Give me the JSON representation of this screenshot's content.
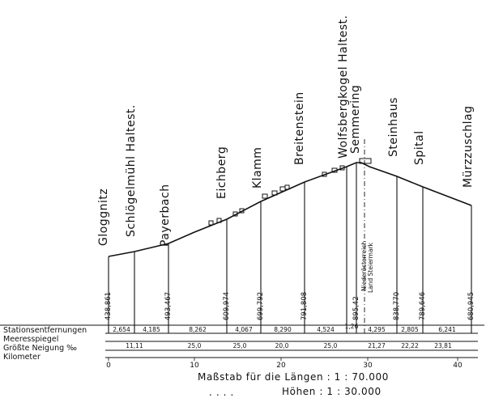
{
  "stations": [
    {
      "name": "Gloggnitz",
      "elevation": "438,861"
    },
    {
      "name": "Schlögelmühl Haltest.",
      "elevation": ""
    },
    {
      "name": "Payerbach",
      "elevation": "493,467"
    },
    {
      "name": "Eichberg",
      "elevation": "609,974"
    },
    {
      "name": "Klamm",
      "elevation": "699,792"
    },
    {
      "name": "Breitenstein",
      "elevation": "791,808"
    },
    {
      "name": "Wolfsbergkogel Haltest.",
      "elevation": ""
    },
    {
      "name": "Semmering",
      "elevation": "895,42"
    },
    {
      "name": "Steinhaus",
      "elevation": "838,770"
    },
    {
      "name": "Spital",
      "elevation": "789,646"
    },
    {
      "name": "Mürzzuschlag",
      "elevation": "680,945"
    }
  ],
  "border_label": {
    "line1": "Niederösterreich",
    "line2": "Land Steiermark"
  },
  "legend": {
    "distances": "Stationsentfernungen",
    "sea_level": "Meeresspiegel",
    "gradient": "Größte Neigung ‰",
    "kilometer": "Kilometer"
  },
  "distances": [
    "2,654",
    "4,185",
    "8,262",
    "4,067",
    "8,290",
    "4,524",
    "1,26",
    "4,295",
    "2,805",
    "6,241"
  ],
  "gradients": [
    "11,11",
    "25,0",
    "25,0",
    "20,0",
    "25,0",
    "21,27",
    "22,22",
    "23,81"
  ],
  "km_ticks": [
    "0",
    "10",
    "20",
    "30",
    "40"
  ],
  "scale": {
    "length": "Maßstab für die Längen : 1 : 70.000",
    "height_prefix": ". . . .",
    "height": "Höhen : 1 : 30.000"
  }
}
